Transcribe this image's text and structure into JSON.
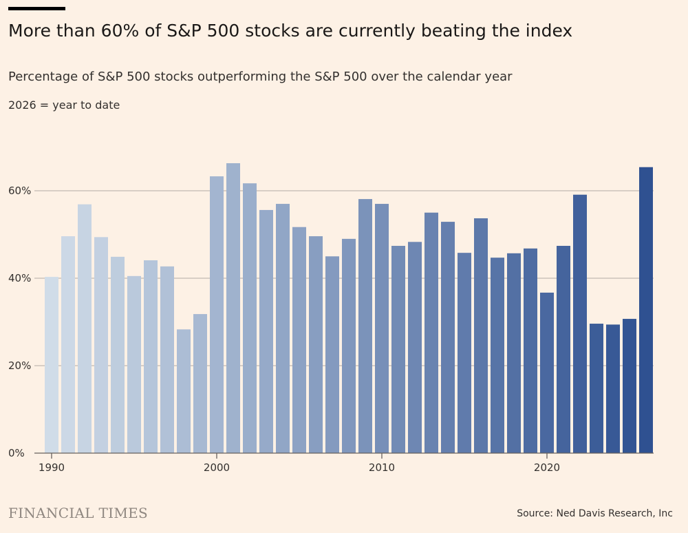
{
  "title": "More than 60% of S&P 500 stocks are currently beating the index",
  "subtitle": "Percentage of S&P 500 stocks outperforming the S&P 500 over the calendar year",
  "note": "2026 = year to date",
  "logo": "FINANCIAL TIMES",
  "source": "Source: Ned Davis Research, Inc",
  "colors": {
    "background": "#fdf1e5",
    "bar_start": "#d0dce8",
    "bar_end": "#2f5191",
    "grid": "#c2b9b2"
  },
  "chart_data": {
    "type": "bar",
    "title": "More than 60% of S&P 500 stocks are currently beating the index",
    "xlabel": "",
    "ylabel": "",
    "ylim": [
      0,
      70
    ],
    "grid": true,
    "y_ticks": [
      0,
      20,
      40,
      60
    ],
    "y_tick_labels": [
      "0%",
      "20%",
      "40%",
      "60%"
    ],
    "x_ticks": [
      1990,
      2000,
      2010,
      2020
    ],
    "x_tick_labels": [
      "1990",
      "2000",
      "2010",
      "2020"
    ],
    "categories": [
      1990,
      1991,
      1992,
      1993,
      1994,
      1995,
      1996,
      1997,
      1998,
      1999,
      2000,
      2001,
      2002,
      2003,
      2004,
      2005,
      2006,
      2007,
      2008,
      2009,
      2010,
      2011,
      2012,
      2013,
      2014,
      2015,
      2016,
      2017,
      2018,
      2019,
      2020,
      2021,
      2022,
      2023,
      2024,
      2025,
      2026
    ],
    "values": [
      40.3,
      49.6,
      56.9,
      49.4,
      44.9,
      40.5,
      44.1,
      42.7,
      28.3,
      31.8,
      63.3,
      66.3,
      61.7,
      55.6,
      57.0,
      51.7,
      49.6,
      45.0,
      49.0,
      58.1,
      57.0,
      47.4,
      48.3,
      55.0,
      52.9,
      45.8,
      53.7,
      44.7,
      45.7,
      46.8,
      36.7,
      47.4,
      59.1,
      29.6,
      29.4,
      30.7,
      65.4
    ]
  }
}
